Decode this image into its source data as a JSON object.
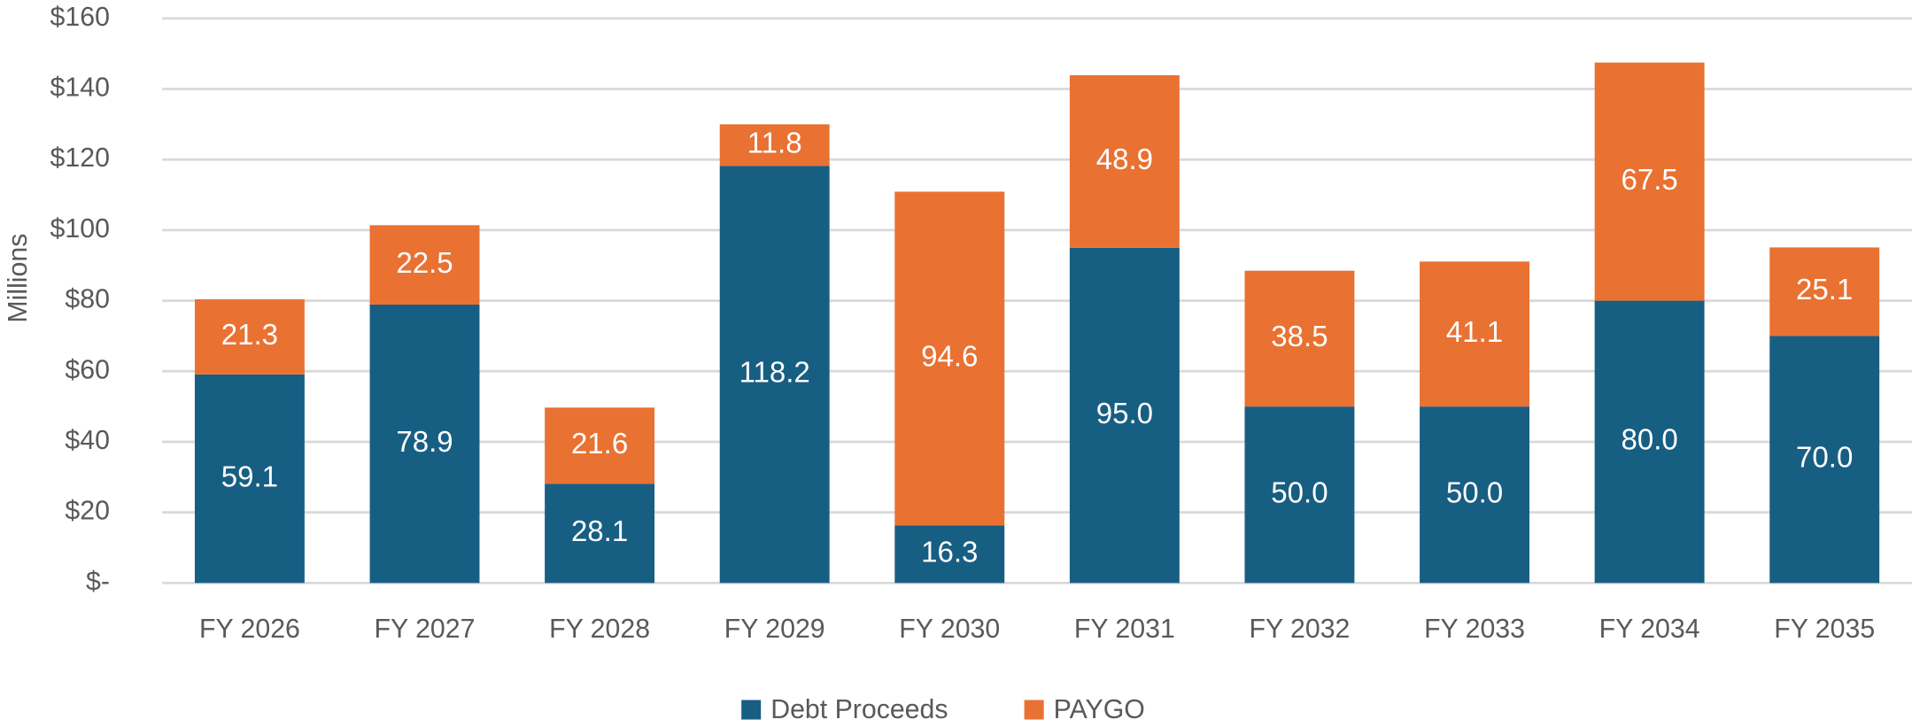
{
  "chart_data": {
    "type": "stacked_bar",
    "y_label": "Millions",
    "categories": [
      "FY 2026",
      "FY 2027",
      "FY 2028",
      "FY 2029",
      "FY 2030",
      "FY 2031",
      "FY 2032",
      "FY 2033",
      "FY 2034",
      "FY 2035"
    ],
    "series": [
      {
        "name": "Debt Proceeds",
        "color": "#175e83",
        "values": [
          59.1,
          78.9,
          28.1,
          118.2,
          16.3,
          95,
          50,
          50,
          80,
          70
        ],
        "value_labels": [
          "59.1",
          "78.9",
          "28.1",
          "118.2",
          "16.3",
          "95.0",
          "50.0",
          "50.0",
          "80.0",
          "70.0"
        ]
      },
      {
        "name": "PAYGO",
        "color": "#e97132",
        "values": [
          21.3,
          22.5,
          21.6,
          11.8,
          94.6,
          48.9,
          38.5,
          41.1,
          67.5,
          25.1
        ],
        "value_labels": [
          "21.3",
          "22.5",
          "21.6",
          "11.8",
          "94.6",
          "48.9",
          "38.5",
          "41.1",
          "67.5",
          "25.1"
        ]
      }
    ],
    "ylim": [
      0,
      160
    ],
    "yticks": [
      {
        "value": 0,
        "label": "$-"
      },
      {
        "value": 20,
        "label": "$20"
      },
      {
        "value": 40,
        "label": "$40"
      },
      {
        "value": 60,
        "label": "$60"
      },
      {
        "value": 80,
        "label": "$80"
      },
      {
        "value": 100,
        "label": "$100"
      },
      {
        "value": 120,
        "label": "$120"
      },
      {
        "value": 140,
        "label": "$140"
      },
      {
        "value": 160,
        "label": "$160"
      }
    ],
    "grid": true,
    "legend": "bottom"
  }
}
